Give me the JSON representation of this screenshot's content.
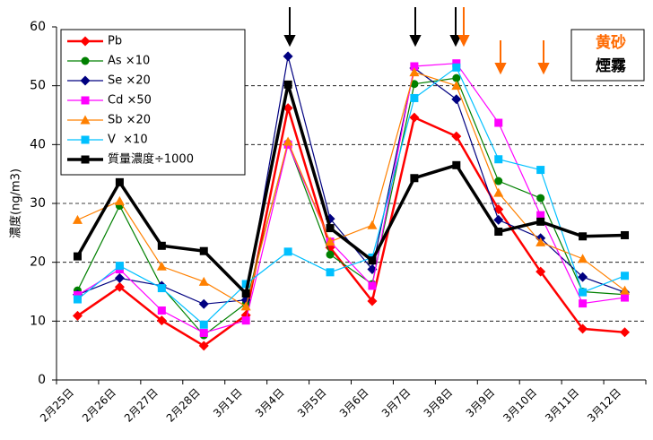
{
  "chart_data": {
    "type": "line",
    "y_label": "濃度(ng/m3)",
    "categories": [
      "2月25日",
      "2月26日",
      "2月27日",
      "2月28日",
      "3月1日",
      "3月4日",
      "3月5日",
      "3月6日",
      "3月7日",
      "3月8日",
      "3月9日",
      "3月10日",
      "3月11日",
      "3月12日"
    ],
    "ylim": [
      0,
      60
    ],
    "yticks": [
      0,
      10,
      20,
      30,
      40,
      50,
      60
    ],
    "grid": true,
    "series": [
      {
        "name": "Pb",
        "color": "#ff0000",
        "marker": "diamond",
        "width": 2.5,
        "values": [
          10.9,
          15.8,
          10.1,
          5.8,
          11,
          46.2,
          22.5,
          13.4,
          44.6,
          41.4,
          29,
          18.4,
          8.7,
          8.1
        ]
      },
      {
        "name": "As ×10",
        "color": "#008000",
        "marker": "circle",
        "width": 1.2,
        "values": [
          15.2,
          29.6,
          15.8,
          7.6,
          13,
          40.2,
          21.3,
          16.3,
          50.3,
          51.3,
          33.8,
          30.9,
          15,
          14.5
        ]
      },
      {
        "name": "Se ×20",
        "color": "#000080",
        "marker": "diamond",
        "width": 1.2,
        "values": [
          14.5,
          17.3,
          16,
          12.9,
          13.6,
          55,
          27.4,
          18.8,
          53,
          47.7,
          27.2,
          24.1,
          17.5,
          14.9
        ]
      },
      {
        "name": "Cd ×50",
        "color": "#ff00ff",
        "marker": "square",
        "width": 1.2,
        "values": [
          14.4,
          18.8,
          11.8,
          8,
          10.1,
          40,
          23.5,
          16,
          53.3,
          53.8,
          43.7,
          28,
          13,
          14
        ]
      },
      {
        "name": "Sb ×20",
        "color": "#ff8000",
        "marker": "triangle",
        "width": 1.2,
        "values": [
          27.2,
          30.4,
          19.3,
          16.7,
          12.5,
          40.5,
          23.5,
          26.3,
          52.3,
          50,
          31.8,
          23.4,
          20.6,
          15.2
        ]
      },
      {
        "name": "V  ×10",
        "color": "#00c0ff",
        "marker": "square",
        "width": 1.2,
        "values": [
          13.7,
          19.4,
          15.6,
          9.4,
          16.3,
          21.8,
          18.3,
          20.8,
          47.9,
          53.1,
          37.5,
          35.7,
          14.9,
          17.7
        ]
      },
      {
        "name": "質量濃度÷1000",
        "color": "#000000",
        "marker": "square",
        "width": 3.5,
        "values": [
          21,
          33.6,
          22.8,
          21.9,
          14.7,
          50.2,
          25.8,
          20.3,
          34.3,
          36.5,
          25.2,
          26.9,
          24.4,
          24.6
        ]
      }
    ],
    "annotation_box": {
      "dust": "黄砂",
      "haze": "煙霧"
    }
  }
}
